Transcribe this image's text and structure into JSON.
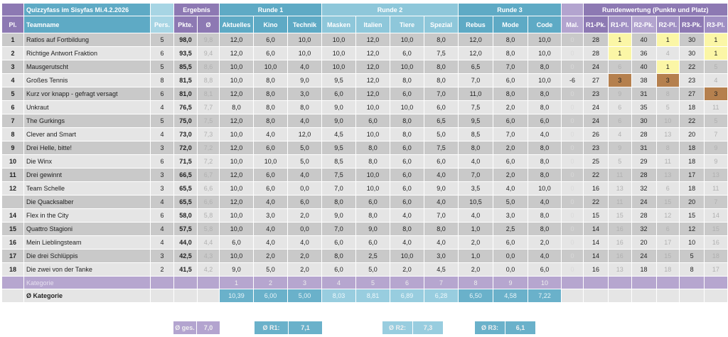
{
  "title": "Quizzyfass im Sisyfas Mi.4.2.2026",
  "groups": {
    "ergebnis": "Ergebnis",
    "runde1": "Runde 1",
    "runde2": "Runde 2",
    "runde3": "Runde 3",
    "rundenwertung": "Rundenwertung (Punkte und Platz)"
  },
  "columns": [
    "Pl.",
    "Teamname",
    "Pers.",
    "Pkte.",
    "Ø",
    "Aktuelles",
    "Kino",
    "Technik",
    "Masken",
    "Italien",
    "Tiere",
    "Spezial",
    "Rebus",
    "Mode",
    "Code",
    "Mal.",
    "R1-Pk.",
    "R1-Pl.",
    "R2-Pk.",
    "R2-Pl.",
    "R3-Pk.",
    "R3-Pl."
  ],
  "rows": [
    [
      "1",
      "Ratlos auf Fortbildung",
      "5",
      "98,0",
      "9,8",
      "12,0",
      "6,0",
      "10,0",
      "10,0",
      "12,0",
      "10,0",
      "8,0",
      "12,0",
      "8,0",
      "10,0",
      "0",
      "28",
      "1",
      "40",
      "1",
      "30",
      "1"
    ],
    [
      "2",
      "Richtige Antwort Fraktion",
      "6",
      "93,5",
      "9,4",
      "12,0",
      "6,0",
      "10,0",
      "10,0",
      "12,0",
      "6,0",
      "7,5",
      "12,0",
      "8,0",
      "10,0",
      "0",
      "28",
      "1",
      "36",
      "4",
      "30",
      "1"
    ],
    [
      "3",
      "Mausgerutscht",
      "5",
      "85,5",
      "8,6",
      "10,0",
      "10,0",
      "4,0",
      "10,0",
      "12,0",
      "10,0",
      "8,0",
      "6,5",
      "7,0",
      "8,0",
      "0",
      "24",
      "6",
      "40",
      "1",
      "22",
      "5"
    ],
    [
      "4",
      "Großes Tennis",
      "8",
      "81,5",
      "8,8",
      "10,0",
      "8,0",
      "9,0",
      "9,5",
      "12,0",
      "8,0",
      "8,0",
      "7,0",
      "6,0",
      "10,0",
      "-6",
      "27",
      "3",
      "38",
      "3",
      "23",
      "4"
    ],
    [
      "5",
      "Kurz vor knapp - gefragt versagt",
      "6",
      "81,0",
      "8,1",
      "12,0",
      "8,0",
      "3,0",
      "6,0",
      "12,0",
      "6,0",
      "7,0",
      "11,0",
      "8,0",
      "8,0",
      "0",
      "23",
      "9",
      "31",
      "8",
      "27",
      "3"
    ],
    [
      "6",
      "Unkraut",
      "4",
      "76,5",
      "7,7",
      "8,0",
      "8,0",
      "8,0",
      "9,0",
      "10,0",
      "10,0",
      "6,0",
      "7,5",
      "2,0",
      "8,0",
      "0",
      "24",
      "6",
      "35",
      "5",
      "18",
      "11"
    ],
    [
      "7",
      "The Gurkings",
      "5",
      "75,0",
      "7,5",
      "12,0",
      "8,0",
      "4,0",
      "9,0",
      "6,0",
      "8,0",
      "6,5",
      "9,5",
      "6,0",
      "6,0",
      "0",
      "24",
      "6",
      "30",
      "10",
      "22",
      "5"
    ],
    [
      "8",
      "Clever and Smart",
      "4",
      "73,0",
      "7,3",
      "10,0",
      "4,0",
      "12,0",
      "4,5",
      "10,0",
      "8,0",
      "5,0",
      "8,5",
      "7,0",
      "4,0",
      "0",
      "26",
      "4",
      "28",
      "13",
      "20",
      "7"
    ],
    [
      "9",
      "Drei Helle, bitte!",
      "3",
      "72,0",
      "7,2",
      "12,0",
      "6,0",
      "5,0",
      "9,5",
      "8,0",
      "6,0",
      "7,5",
      "8,0",
      "2,0",
      "8,0",
      "0",
      "23",
      "9",
      "31",
      "8",
      "18",
      "9"
    ],
    [
      "10",
      "Die Winx",
      "6",
      "71,5",
      "7,2",
      "10,0",
      "10,0",
      "5,0",
      "8,5",
      "8,0",
      "6,0",
      "6,0",
      "4,0",
      "6,0",
      "8,0",
      "0",
      "25",
      "5",
      "29",
      "11",
      "18",
      "9"
    ],
    [
      "11",
      "Drei gewinnt",
      "3",
      "66,5",
      "6,7",
      "12,0",
      "6,0",
      "4,0",
      "7,5",
      "10,0",
      "6,0",
      "4,0",
      "7,0",
      "2,0",
      "8,0",
      "0",
      "22",
      "11",
      "28",
      "13",
      "17",
      "13"
    ],
    [
      "12",
      "Team Schelle",
      "3",
      "65,5",
      "6,6",
      "10,0",
      "6,0",
      "0,0",
      "7,0",
      "10,0",
      "6,0",
      "9,0",
      "3,5",
      "4,0",
      "10,0",
      "0",
      "16",
      "13",
      "32",
      "6",
      "18",
      "11"
    ],
    [
      "",
      "Die Quacksalber",
      "4",
      "65,5",
      "6,6",
      "12,0",
      "4,0",
      "6,0",
      "8,0",
      "6,0",
      "6,0",
      "4,0",
      "10,5",
      "5,0",
      "4,0",
      "0",
      "22",
      "11",
      "24",
      "15",
      "20",
      "7"
    ],
    [
      "14",
      "Flex in the City",
      "6",
      "58,0",
      "5,8",
      "10,0",
      "3,0",
      "2,0",
      "9,0",
      "8,0",
      "4,0",
      "7,0",
      "4,0",
      "3,0",
      "8,0",
      "0",
      "15",
      "15",
      "28",
      "12",
      "15",
      "14"
    ],
    [
      "15",
      "Quattro Stagioni",
      "4",
      "57,5",
      "5,8",
      "10,0",
      "4,0",
      "0,0",
      "7,0",
      "9,0",
      "8,0",
      "8,0",
      "1,0",
      "2,5",
      "8,0",
      "0",
      "14",
      "16",
      "32",
      "6",
      "12",
      "15"
    ],
    [
      "16",
      "Mein Lieblingsteam",
      "4",
      "44,0",
      "4,4",
      "6,0",
      "4,0",
      "4,0",
      "6,0",
      "6,0",
      "4,0",
      "4,0",
      "2,0",
      "6,0",
      "2,0",
      "0",
      "14",
      "16",
      "20",
      "17",
      "10",
      "16"
    ],
    [
      "17",
      "Die drei Schlüppis",
      "3",
      "42,5",
      "4,3",
      "10,0",
      "2,0",
      "2,0",
      "8,0",
      "2,5",
      "10,0",
      "3,0",
      "1,0",
      "0,0",
      "4,0",
      "0",
      "14",
      "16",
      "24",
      "15",
      "5",
      "18"
    ],
    [
      "18",
      "Die zwei von der Tanke",
      "2",
      "41,5",
      "4,2",
      "9,0",
      "5,0",
      "2,0",
      "6,0",
      "5,0",
      "2,0",
      "4,5",
      "2,0",
      "0,0",
      "6,0",
      "0",
      "16",
      "13",
      "18",
      "18",
      "8",
      "17"
    ]
  ],
  "kategorie": {
    "label": "Kategorie",
    "numbers": [
      "1",
      "2",
      "3",
      "4",
      "5",
      "6",
      "7",
      "8",
      "9",
      "10"
    ]
  },
  "avg_kategorie": {
    "label": "Ø Kategorie",
    "values": [
      "10,39",
      "6,00",
      "5,00",
      "8,03",
      "8,81",
      "6,89",
      "6,28",
      "6,50",
      "4,58",
      "7,22"
    ]
  },
  "footer": {
    "ges": {
      "label": "Ø ges.",
      "value": "7,0"
    },
    "r1": {
      "label": "Ø R1:",
      "value": "7,1"
    },
    "r2": {
      "label": "Ø R2:",
      "value": "7,3"
    },
    "r3": {
      "label": "Ø R3:",
      "value": "6,1"
    }
  },
  "colors": {
    "teal": "#5eaac5",
    "purple": "#8d79b3",
    "gold": "#fbf6a6",
    "bronze": "#b5804e"
  }
}
